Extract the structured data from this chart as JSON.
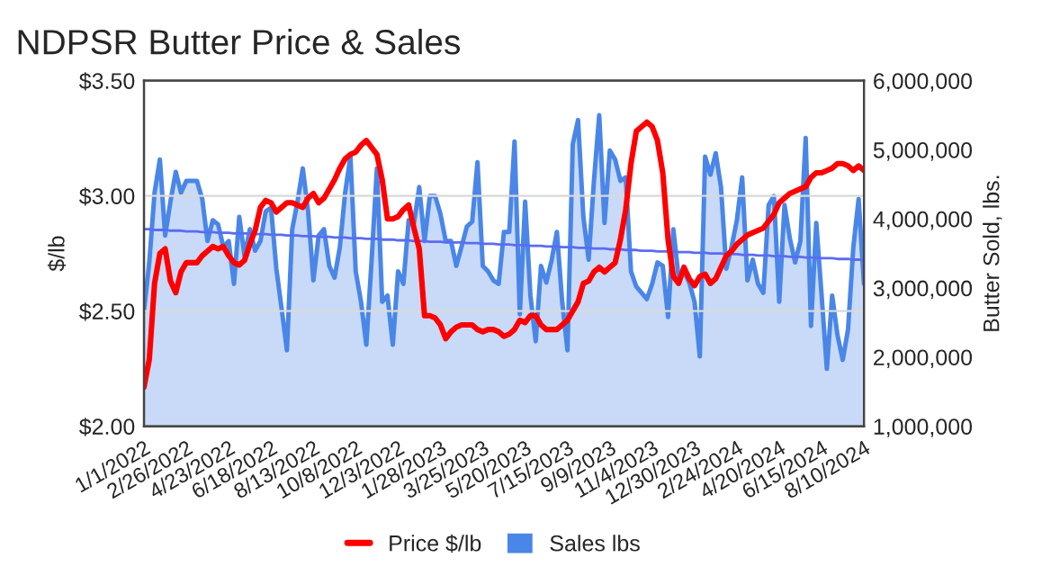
{
  "chart_data": {
    "type": "line",
    "title": "NDPSR Butter Price & Sales",
    "ylabel": "$/lb",
    "y2label": "Butter Sold, lbs.",
    "categories": [
      "1/1/2022",
      null,
      null,
      null,
      null,
      null,
      null,
      null,
      "2/26/2022",
      null,
      null,
      null,
      null,
      null,
      null,
      null,
      "4/23/2022",
      null,
      null,
      null,
      null,
      null,
      null,
      null,
      "6/18/2022",
      null,
      null,
      null,
      null,
      null,
      null,
      null,
      "8/13/2022",
      null,
      null,
      null,
      null,
      null,
      null,
      null,
      "10/8/2022",
      null,
      null,
      null,
      null,
      null,
      null,
      null,
      "12/3/2022",
      null,
      null,
      null,
      null,
      null,
      null,
      null,
      "1/28/2023",
      null,
      null,
      null,
      null,
      null,
      null,
      null,
      "3/25/2023",
      null,
      null,
      null,
      null,
      null,
      null,
      null,
      "5/20/2023",
      null,
      null,
      null,
      null,
      null,
      null,
      null,
      "7/15/2023",
      null,
      null,
      null,
      null,
      null,
      null,
      null,
      "9/9/2023",
      null,
      null,
      null,
      null,
      null,
      null,
      null,
      "11/4/2023",
      null,
      null,
      null,
      null,
      null,
      null,
      null,
      "12/30/2023",
      null,
      null,
      null,
      null,
      null,
      null,
      null,
      "2/24/2024",
      null,
      null,
      null,
      null,
      null,
      null,
      null,
      "4/20/2024",
      null,
      null,
      null,
      null,
      null,
      null,
      null,
      "6/15/2024",
      null,
      null,
      null,
      null,
      null,
      null,
      null,
      "8/10/2024"
    ],
    "series": [
      {
        "name": "Sales lbs",
        "type": "area",
        "axis": "y2",
        "color": "#4a86e8",
        "values": [
          2670000.0,
          3370000.0,
          4380000.0,
          4860000.0,
          3760000.0,
          4250000.0,
          4680000.0,
          4380000.0,
          4550000.0,
          4550000.0,
          4550000.0,
          4290000.0,
          3680000.0,
          3980000.0,
          3920000.0,
          3590000.0,
          3680000.0,
          3060000.0,
          4030000.0,
          3460000.0,
          3850000.0,
          3540000.0,
          3680000.0,
          4110000.0,
          4160000.0,
          3280000.0,
          2700000.0,
          2100000.0,
          3850000.0,
          4250000.0,
          4730000.0,
          4110000.0,
          3110000.0,
          3760000.0,
          3850000.0,
          3320000.0,
          3150000.0,
          3590000.0,
          4380000.0,
          4900000.0,
          3240000.0,
          2800000.0,
          2180000.0,
          3400000.0,
          4730000.0,
          2800000.0,
          2890000.0,
          2180000.0,
          3240000.0,
          3060000.0,
          3980000.0,
          3940000.0,
          4460000.0,
          3680000.0,
          4330000.0,
          4330000.0,
          4070000.0,
          3680000.0,
          3680000.0,
          3320000.0,
          3600000.0,
          3890000.0,
          3960000.0,
          4820000.0,
          3320000.0,
          3240000.0,
          3110000.0,
          3060000.0,
          3810000.0,
          3810000.0,
          5120000.0,
          2620000.0,
          4250000.0,
          2890000.0,
          2230000.0,
          3320000.0,
          3080000.0,
          3400000.0,
          3810000.0,
          2800000.0,
          2100000.0,
          5080000.0,
          5430000.0,
          4030000.0,
          3410000.0,
          4550000.0,
          5500000.0,
          3940000.0,
          4990000.0,
          4860000.0,
          4550000.0,
          4600000.0,
          3240000.0,
          3020000.0,
          2930000.0,
          2840000.0,
          3060000.0,
          3370000.0,
          3320000.0,
          2580000.0,
          3850000.0,
          3150000.0,
          3240000.0,
          3080000.0,
          2800000.0,
          2010000.0,
          4900000.0,
          4640000.0,
          4950000.0,
          4460000.0,
          3280000.0,
          3600000.0,
          3980000.0,
          4600000.0,
          3110000.0,
          3410000.0,
          3060000.0,
          2930000.0,
          4200000.0,
          4330000.0,
          2800000.0,
          4200000.0,
          3720000.0,
          3370000.0,
          3680000.0,
          5170000.0,
          2450000.0,
          3940000.0,
          2900000.0,
          1830000.0,
          2890000.0,
          2320000.0,
          1960000.0,
          2400000.0,
          3590000.0,
          4290000.0,
          3060000.0
        ]
      },
      {
        "axis": "y2",
        "color": "#5b6cf0",
        "values": [
          3850000.0,
          3850000.0,
          3840000.0,
          3840000.0,
          3840000.0,
          3830000.0,
          3830000.0,
          3830000.0,
          3820000.0,
          3820000.0,
          3820000.0,
          3810000.0,
          3810000.0,
          3810000.0,
          3800000.0,
          3800000.0,
          3800000.0,
          3790000.0,
          3790000.0,
          3790000.0,
          3790000.0,
          3780000.0,
          3780000.0,
          3780000.0,
          3770000.0,
          3770000.0,
          3770000.0,
          3760000.0,
          3760000.0,
          3760000.0,
          3750000.0,
          3750000.0,
          3750000.0,
          3740000.0,
          3740000.0,
          3740000.0,
          3730000.0,
          3730000.0,
          3730000.0,
          3720000.0,
          3720000.0,
          3720000.0,
          3710000.0,
          3710000.0,
          3710000.0,
          3700000.0,
          3700000.0,
          3700000.0,
          3690000.0,
          3690000.0,
          3690000.0,
          3680000.0,
          3680000.0,
          3680000.0,
          3670000.0,
          3670000.0,
          3670000.0,
          3660000.0,
          3660000.0,
          3660000.0,
          3660000.0,
          3650000.0,
          3650000.0,
          3650000.0,
          3640000.0,
          3640000.0,
          3640000.0,
          3630000.0,
          3630000.0,
          3630000.0,
          3620000.0,
          3620000.0,
          3620000.0,
          3610000.0,
          3610000.0,
          3610000.0,
          3600000.0,
          3600000.0,
          3600000.0,
          3590000.0,
          3590000.0,
          3590000.0,
          3580000.0,
          3580000.0,
          3580000.0,
          3570000.0,
          3570000.0,
          3570000.0,
          3560000.0,
          3560000.0,
          3560000.0,
          3550000.0,
          3550000.0,
          3550000.0,
          3540000.0,
          3540000.0,
          3540000.0,
          3530000.0,
          3530000.0,
          3530000.0,
          3530000.0,
          3520000.0,
          3520000.0,
          3520000.0,
          3510000.0,
          3510000.0,
          3510000.0,
          3500000.0,
          3500000.0,
          3500000.0,
          3490000.0,
          3490000.0,
          3490000.0,
          3480000.0,
          3480000.0,
          3480000.0,
          3470000.0,
          3470000.0,
          3470000.0,
          3460000.0,
          3460000.0,
          3460000.0,
          3450000.0,
          3450000.0,
          3450000.0,
          3440000.0,
          3440000.0,
          3440000.0,
          3430000.0,
          3430000.0,
          3430000.0,
          3420000.0,
          3420000.0,
          3420000.0,
          3410000.0,
          3410000.0,
          3410000.0
        ]
      },
      {
        "name": "Price $/lb",
        "axis": "y",
        "color": "#ff0000",
        "values": [
          2.17,
          2.29,
          2.62,
          2.75,
          2.77,
          2.63,
          2.58,
          2.67,
          2.71,
          2.71,
          2.71,
          2.74,
          2.76,
          2.78,
          2.77,
          2.78,
          2.74,
          2.71,
          2.7,
          2.72,
          2.79,
          2.85,
          2.95,
          2.98,
          2.97,
          2.93,
          2.95,
          2.97,
          2.97,
          2.96,
          2.95,
          2.99,
          3.01,
          2.97,
          2.99,
          3.03,
          3.07,
          3.12,
          3.16,
          3.18,
          3.19,
          3.22,
          3.24,
          3.21,
          3.18,
          3.07,
          2.9,
          2.9,
          2.91,
          2.94,
          2.96,
          2.86,
          2.77,
          2.48,
          2.48,
          2.47,
          2.44,
          2.38,
          2.41,
          2.43,
          2.44,
          2.44,
          2.44,
          2.42,
          2.41,
          2.42,
          2.42,
          2.41,
          2.39,
          2.4,
          2.42,
          2.46,
          2.45,
          2.48,
          2.48,
          2.44,
          2.42,
          2.42,
          2.42,
          2.44,
          2.46,
          2.5,
          2.54,
          2.62,
          2.63,
          2.67,
          2.69,
          2.67,
          2.69,
          2.71,
          2.81,
          2.94,
          3.14,
          3.28,
          3.3,
          3.32,
          3.3,
          3.24,
          3.1,
          2.81,
          2.65,
          2.62,
          2.69,
          2.64,
          2.61,
          2.65,
          2.66,
          2.62,
          2.64,
          2.69,
          2.74,
          2.76,
          2.79,
          2.81,
          2.83,
          2.84,
          2.85,
          2.86,
          2.89,
          2.92,
          2.97,
          2.99,
          3.01,
          3.02,
          3.03,
          3.04,
          3.08,
          3.1,
          3.1,
          3.11,
          3.12,
          3.14,
          3.14,
          3.13,
          3.11,
          3.13,
          3.11
        ]
      }
    ],
    "ylim": [
      2.0,
      3.5
    ],
    "yticks": [
      {
        "value": 2.0,
        "label": "$2.00"
      },
      {
        "value": 2.5,
        "label": "$2.50"
      },
      {
        "value": 3.0,
        "label": "$3.00"
      },
      {
        "value": 3.5,
        "label": "$3.50"
      }
    ],
    "y2lim": [
      1000000,
      6000000
    ],
    "y2ticks": [
      {
        "value": 1000000,
        "label": "1,000,000"
      },
      {
        "value": 2000000,
        "label": "2,000,000"
      },
      {
        "value": 3000000,
        "label": "3,000,000"
      },
      {
        "value": 4000000,
        "label": "4,000,000"
      },
      {
        "value": 5000000,
        "label": "5,000,000"
      },
      {
        "value": 6000000,
        "label": "6,000,000"
      }
    ],
    "grid": "y",
    "legend": "bottom",
    "line_style": "solid"
  }
}
